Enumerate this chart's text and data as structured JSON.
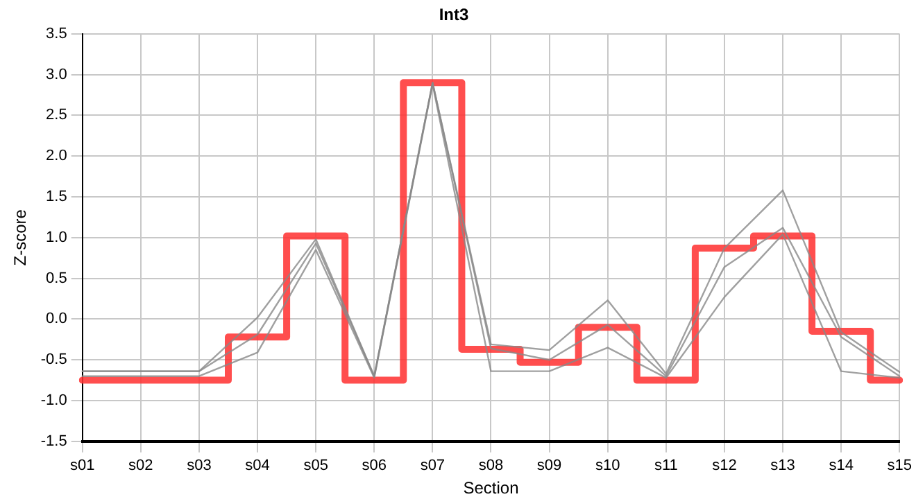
{
  "chart_data": {
    "type": "line",
    "title": "Int3",
    "xlabel": "Section",
    "ylabel": "Z-score",
    "categories": [
      "s01",
      "s02",
      "s03",
      "s04",
      "s05",
      "s06",
      "s07",
      "s08",
      "s09",
      "s10",
      "s11",
      "s12",
      "s13",
      "s14",
      "s15"
    ],
    "series": [
      {
        "color": "#888888",
        "values": [
          -0.64,
          -0.64,
          -0.64,
          0.02,
          0.98,
          -0.7,
          2.9,
          -0.31,
          -0.38,
          0.23,
          -0.67,
          0.87,
          1.58,
          -0.16,
          -0.65
        ]
      },
      {
        "color": "#888888",
        "values": [
          -0.64,
          -0.64,
          -0.64,
          -0.19,
          0.93,
          -0.7,
          2.9,
          -0.36,
          -0.5,
          -0.07,
          -0.7,
          0.64,
          1.12,
          -0.22,
          -0.7
        ]
      },
      {
        "color": "#888888",
        "values": [
          -0.7,
          -0.7,
          -0.7,
          -0.41,
          0.85,
          -0.72,
          2.88,
          -0.64,
          -0.64,
          -0.35,
          -0.72,
          0.27,
          1.04,
          -0.64,
          -0.72
        ]
      },
      {
        "type": "step",
        "color": "#ff3333",
        "values": [
          -0.75,
          -0.75,
          -0.75,
          -0.22,
          1.02,
          -0.75,
          2.9,
          -0.37,
          -0.53,
          -0.1,
          -0.75,
          0.87,
          1.02,
          -0.15,
          -0.75
        ]
      }
    ],
    "ylim": [
      -1.5,
      3.5
    ],
    "yticks": [
      {
        "value": -1.5,
        "label": "-1.5"
      },
      {
        "value": -1,
        "label": "-1.0"
      },
      {
        "value": -0.5,
        "label": "-0.5"
      },
      {
        "value": 0,
        "label": "0.0"
      },
      {
        "value": 0.5,
        "label": "0.5"
      },
      {
        "value": 1,
        "label": "1.0"
      },
      {
        "value": 1.5,
        "label": "1.5"
      },
      {
        "value": 2,
        "label": "2.0"
      },
      {
        "value": 2.5,
        "label": "2.5"
      },
      {
        "value": 3,
        "label": "3.0"
      },
      {
        "value": 3.5,
        "label": "3.5"
      }
    ],
    "grid": true,
    "legend": false,
    "marker": "none",
    "line_style": "solid"
  }
}
